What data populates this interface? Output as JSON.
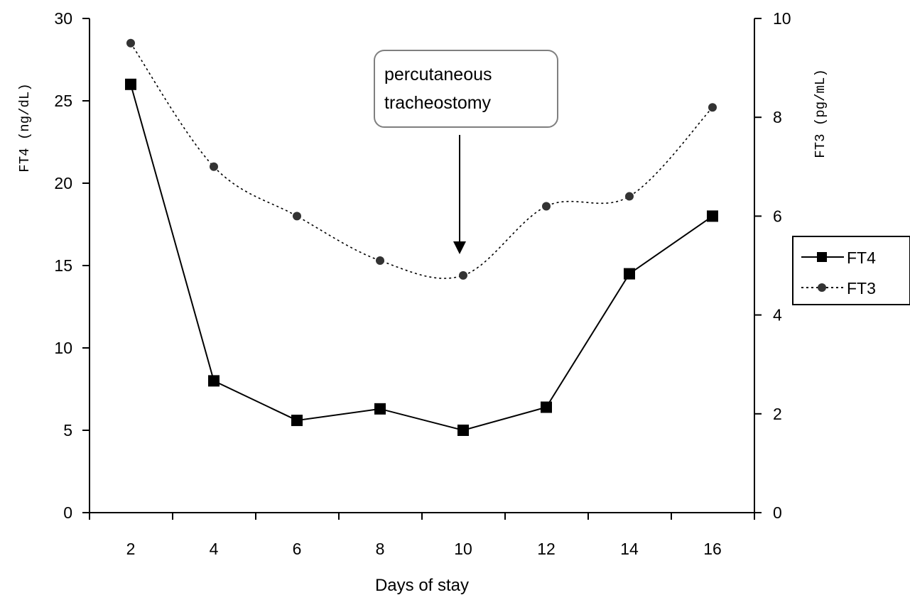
{
  "chart_data": {
    "type": "line",
    "xlabel": "Days of stay",
    "ylabel_left": "FT4  (ng/dL)",
    "ylabel_right": "FT3  (pg/mL)",
    "x": [
      2,
      4,
      6,
      8,
      10,
      12,
      14,
      16
    ],
    "x_ticks": [
      "2",
      "4",
      "6",
      "8",
      "10",
      "12",
      "14",
      "16"
    ],
    "ylim_left": [
      0,
      30
    ],
    "yticks_left": [
      "0",
      "5",
      "10",
      "15",
      "20",
      "25",
      "30"
    ],
    "ylim_right": [
      0,
      10
    ],
    "yticks_right": [
      "0",
      "2",
      "4",
      "6",
      "8",
      "10"
    ],
    "grid": false,
    "legend_position": "right",
    "series": [
      {
        "name": "FT4",
        "axis": "left",
        "values": [
          26,
          8,
          5.6,
          6.3,
          5.0,
          6.4,
          14.5,
          18
        ],
        "line_style": "solid",
        "marker": "square",
        "color": "#000000"
      },
      {
        "name": "FT3",
        "axis": "right",
        "values": [
          9.5,
          7.0,
          6.0,
          5.1,
          4.8,
          6.2,
          6.4,
          8.2
        ],
        "line_style": "dotted",
        "marker": "circle",
        "color": "#000000"
      }
    ],
    "annotations": [
      {
        "text_lines": [
          "percutaneous",
          "tracheostomy"
        ],
        "x": 10,
        "points_to_series": "FT3"
      }
    ]
  }
}
